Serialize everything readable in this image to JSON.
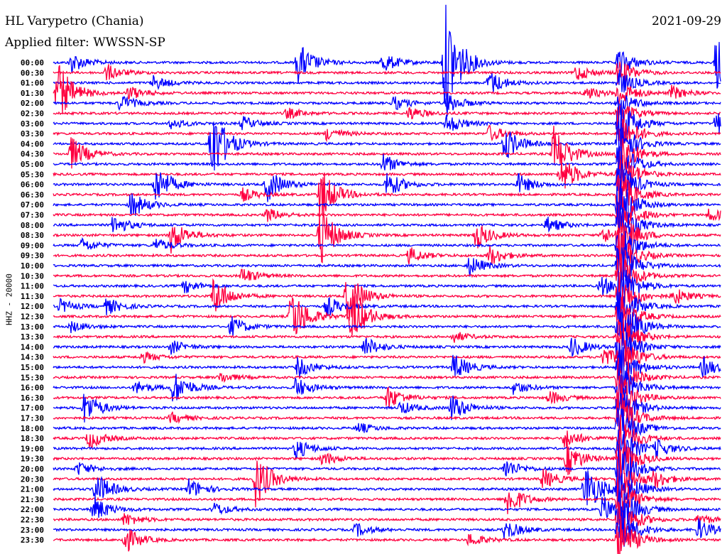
{
  "header": {
    "station": "HL Varypetro (Chania)",
    "filter": "Applied filter: WWSSN-SP",
    "date": "2021-09-29"
  },
  "chart_data": {
    "type": "line",
    "title": "HL Varypetro (Chania)",
    "ylabel": "HHZ - 20000",
    "xlabel": "",
    "minutes_per_row": 30,
    "row_labels": [
      "00:00",
      "00:30",
      "01:00",
      "01:30",
      "02:00",
      "02:30",
      "03:00",
      "03:30",
      "04:00",
      "04:30",
      "05:00",
      "05:30",
      "06:00",
      "06:30",
      "07:00",
      "07:30",
      "08:00",
      "08:30",
      "09:00",
      "09:30",
      "10:00",
      "10:30",
      "11:00",
      "11:30",
      "12:00",
      "12:30",
      "13:00",
      "13:30",
      "14:00",
      "14:30",
      "15:00",
      "15:30",
      "16:00",
      "16:30",
      "17:00",
      "17:30",
      "18:00",
      "18:30",
      "19:00",
      "19:30",
      "20:00",
      "20:30",
      "21:00",
      "21:30",
      "22:00",
      "22:30",
      "23:00",
      "23:30"
    ],
    "series_colors": [
      "#0000ff",
      "#ff0040"
    ],
    "persistent_event_minute": 25.4,
    "events_row_minute_amplitude": [
      [
        0,
        0.8,
        15
      ],
      [
        0,
        11.0,
        30
      ],
      [
        0,
        14.8,
        15
      ],
      [
        0,
        17.6,
        90
      ],
      [
        0,
        29.8,
        40
      ],
      [
        1,
        2.4,
        12
      ],
      [
        1,
        23.5,
        12
      ],
      [
        2,
        4.5,
        10
      ],
      [
        2,
        19.6,
        18
      ],
      [
        3,
        0.2,
        45
      ],
      [
        3,
        3.4,
        10
      ],
      [
        3,
        23.9,
        10
      ],
      [
        3,
        27.8,
        10
      ],
      [
        4,
        3.0,
        12
      ],
      [
        4,
        15.3,
        10
      ],
      [
        4,
        17.7,
        15
      ],
      [
        5,
        10.5,
        8
      ],
      [
        5,
        16.0,
        10
      ],
      [
        6,
        5.3,
        8
      ],
      [
        6,
        8.5,
        10
      ],
      [
        6,
        17.7,
        15
      ],
      [
        6,
        29.8,
        20
      ],
      [
        7,
        12.3,
        10
      ],
      [
        7,
        19.6,
        12
      ],
      [
        8,
        7.1,
        60
      ],
      [
        8,
        20.3,
        25
      ],
      [
        9,
        0.8,
        25
      ],
      [
        9,
        22.5,
        40
      ],
      [
        10,
        14.8,
        15
      ],
      [
        11,
        22.8,
        30
      ],
      [
        12,
        4.6,
        30
      ],
      [
        12,
        9.6,
        25
      ],
      [
        12,
        15.0,
        20
      ],
      [
        12,
        20.9,
        15
      ],
      [
        13,
        8.5,
        10
      ],
      [
        13,
        12.0,
        40
      ],
      [
        14,
        3.5,
        20
      ],
      [
        15,
        9.6,
        10
      ],
      [
        15,
        29.5,
        10
      ],
      [
        16,
        2.7,
        15
      ],
      [
        16,
        22.2,
        12
      ],
      [
        17,
        5.3,
        25
      ],
      [
        17,
        12.0,
        45
      ],
      [
        17,
        19.0,
        20
      ],
      [
        17,
        24.7,
        12
      ],
      [
        18,
        1.3,
        10
      ],
      [
        18,
        4.6,
        10
      ],
      [
        19,
        16.0,
        12
      ],
      [
        19,
        19.6,
        15
      ],
      [
        20,
        18.7,
        15
      ],
      [
        21,
        8.5,
        12
      ],
      [
        22,
        5.9,
        10
      ],
      [
        22,
        24.6,
        15
      ],
      [
        23,
        7.2,
        30
      ],
      [
        23,
        13.2,
        40
      ],
      [
        23,
        27.9,
        12
      ],
      [
        24,
        0.3,
        10
      ],
      [
        24,
        2.4,
        12
      ],
      [
        24,
        12.3,
        15
      ],
      [
        25,
        10.7,
        45
      ],
      [
        25,
        13.4,
        40
      ],
      [
        26,
        0.8,
        8
      ],
      [
        26,
        8.0,
        15
      ],
      [
        26,
        25.9,
        8
      ],
      [
        27,
        18.0,
        8
      ],
      [
        28,
        5.3,
        10
      ],
      [
        28,
        14.0,
        15
      ],
      [
        28,
        23.3,
        15
      ],
      [
        29,
        4.0,
        8
      ],
      [
        29,
        24.7,
        15
      ],
      [
        30,
        11.0,
        15
      ],
      [
        30,
        18.0,
        20
      ],
      [
        30,
        29.2,
        15
      ],
      [
        31,
        7.5,
        8
      ],
      [
        32,
        3.7,
        10
      ],
      [
        32,
        5.4,
        25
      ],
      [
        32,
        10.9,
        15
      ],
      [
        32,
        20.7,
        10
      ],
      [
        33,
        15.0,
        18
      ],
      [
        33,
        22.3,
        10
      ],
      [
        34,
        1.4,
        25
      ],
      [
        34,
        15.6,
        10
      ],
      [
        34,
        17.9,
        20
      ],
      [
        35,
        5.3,
        8
      ],
      [
        36,
        13.7,
        8
      ],
      [
        37,
        1.6,
        15
      ],
      [
        37,
        23.0,
        15
      ],
      [
        38,
        10.9,
        15
      ],
      [
        38,
        27.1,
        12
      ],
      [
        39,
        12.1,
        10
      ],
      [
        39,
        23.1,
        25
      ],
      [
        40,
        1.1,
        10
      ],
      [
        40,
        20.3,
        15
      ],
      [
        41,
        9.1,
        40
      ],
      [
        41,
        22.0,
        15
      ],
      [
        41,
        27.0,
        12
      ],
      [
        42,
        1.9,
        25
      ],
      [
        42,
        6.1,
        15
      ],
      [
        42,
        23.9,
        40
      ],
      [
        43,
        20.4,
        25
      ],
      [
        44,
        1.8,
        20
      ],
      [
        44,
        7.2,
        10
      ],
      [
        44,
        24.7,
        20
      ],
      [
        45,
        3.2,
        10
      ],
      [
        45,
        29.0,
        8
      ],
      [
        46,
        13.6,
        10
      ],
      [
        46,
        20.3,
        15
      ],
      [
        46,
        29.0,
        15
      ],
      [
        47,
        3.2,
        20
      ],
      [
        47,
        18.7,
        10
      ]
    ]
  }
}
